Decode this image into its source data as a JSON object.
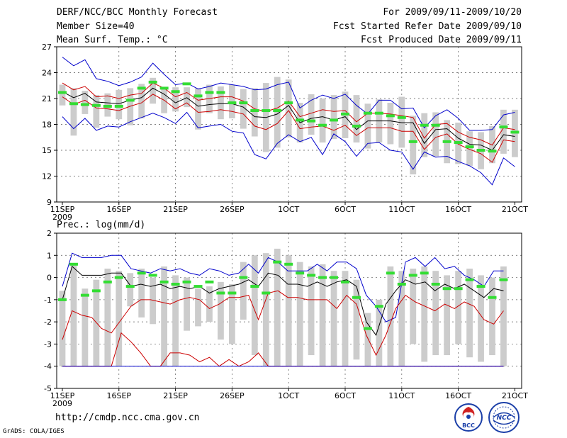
{
  "header": {
    "title": "DERF/NCC/BCC Monthly Forecast",
    "member_size": "Member Size=40",
    "variable": "Mean Surf. Temp.: °C",
    "period": "For 2009/09/11-2009/10/20",
    "started": "Fcst Started Refer Date 2009/09/10",
    "produced": "Fcst Produced Date 2009/09/11"
  },
  "footer": {
    "url": "http://cmdp.ncc.cma.gov.cn",
    "grads": "GrADS: COLA/IGES",
    "logo_left_text": "BCC",
    "logo_right_text": "NCC"
  },
  "colors": {
    "mean": "#000000",
    "inner": "#cc0000",
    "outer": "#0000cc",
    "obs": "#33dd33",
    "box": "#cccccc"
  },
  "chart_data": [
    {
      "type": "line",
      "title": "Mean Surf. Temp.: °C",
      "ylim": [
        9,
        27
      ],
      "yticks": [
        9,
        12,
        15,
        18,
        21,
        24,
        27
      ],
      "xticks": [
        {
          "day": 1,
          "label": "11SEP",
          "sub": "2009"
        },
        {
          "day": 6,
          "label": "16SEP"
        },
        {
          "day": 11,
          "label": "21SEP"
        },
        {
          "day": 16,
          "label": "26SEP"
        },
        {
          "day": 21,
          "label": "1OCT"
        },
        {
          "day": 26,
          "label": "6OCT"
        },
        {
          "day": 31,
          "label": "11OCT"
        },
        {
          "day": 36,
          "label": "16OCT"
        },
        {
          "day": 41,
          "label": "21OCT"
        }
      ],
      "series": [
        {
          "name": "ensemble max",
          "color": "outer",
          "values": [
            25.8,
            24.8,
            25.5,
            23.3,
            23.0,
            22.5,
            22.9,
            23.5,
            25.1,
            23.8,
            22.6,
            22.8,
            22.1,
            22.4,
            22.8,
            22.6,
            22.4,
            22.0,
            22.1,
            22.6,
            22.9,
            19.9,
            20.8,
            21.4,
            21.0,
            21.5,
            20.2,
            19.2,
            20.8,
            20.8,
            19.8,
            19.9,
            17.6,
            19.0,
            19.7,
            18.7,
            17.3,
            17.3,
            17.4,
            19.1,
            19.4
          ]
        },
        {
          "name": "ensemble upper",
          "color": "inner",
          "values": [
            22.8,
            22.0,
            22.4,
            21.2,
            21.3,
            21.0,
            21.4,
            21.6,
            22.8,
            22.2,
            21.2,
            21.7,
            20.8,
            21.0,
            21.2,
            21.2,
            20.7,
            19.8,
            19.5,
            19.9,
            20.7,
            18.9,
            19.3,
            19.7,
            19.5,
            19.6,
            18.3,
            19.3,
            19.3,
            19.2,
            19.0,
            18.8,
            16.4,
            18.0,
            18.1,
            17.1,
            16.5,
            16.2,
            15.6,
            17.6,
            17.4
          ]
        },
        {
          "name": "ensemble mean",
          "color": "mean",
          "values": [
            21.8,
            21.1,
            21.6,
            20.6,
            20.5,
            20.4,
            20.8,
            21.1,
            22.2,
            21.5,
            20.5,
            21.1,
            20.1,
            20.3,
            20.4,
            20.4,
            20.0,
            18.9,
            18.8,
            19.2,
            20.2,
            18.2,
            18.7,
            18.9,
            18.5,
            18.9,
            17.4,
            18.4,
            18.4,
            18.4,
            18.2,
            18.2,
            15.8,
            17.4,
            17.5,
            16.4,
            15.7,
            15.6,
            15.0,
            16.8,
            16.6
          ]
        },
        {
          "name": "ensemble lower",
          "color": "inner",
          "values": [
            21.2,
            20.3,
            20.8,
            19.9,
            19.8,
            19.6,
            20.1,
            20.5,
            21.5,
            20.8,
            19.8,
            20.5,
            19.4,
            19.5,
            19.7,
            19.5,
            19.2,
            17.8,
            17.4,
            18.1,
            19.6,
            17.5,
            17.7,
            17.8,
            17.3,
            17.9,
            16.7,
            17.6,
            17.6,
            17.6,
            17.2,
            17.2,
            15.1,
            16.5,
            16.9,
            15.7,
            15.1,
            14.6,
            13.6,
            16.2,
            16.0
          ]
        },
        {
          "name": "ensemble min",
          "color": "outer",
          "values": [
            18.9,
            17.5,
            18.7,
            17.3,
            17.8,
            17.7,
            18.3,
            18.8,
            19.3,
            18.8,
            18.1,
            19.4,
            17.6,
            17.8,
            18.0,
            17.2,
            17.0,
            14.5,
            14.0,
            15.8,
            16.8,
            16.0,
            16.5,
            14.5,
            16.9,
            16.0,
            14.3,
            15.8,
            15.9,
            15.0,
            14.8,
            12.8,
            14.8,
            14.2,
            14.3,
            13.7,
            13.2,
            12.4,
            11.0,
            14.1,
            13.1
          ]
        }
      ],
      "observed": [
        21.7,
        20.4,
        20.3,
        20.2,
        20.1,
        20.1,
        20.8,
        22.2,
        22.9,
        22.2,
        21.8,
        22.7,
        21.3,
        21.7,
        21.7,
        20.5,
        20.5,
        19.6,
        19.6,
        19.6,
        20.5,
        18.5,
        18.4,
        17.9,
        18.5,
        19.2,
        17.8,
        19.3,
        19.3,
        19.0,
        18.8,
        16.0,
        17.9,
        17.9,
        16.0,
        15.9,
        15.4,
        15.0,
        14.9,
        17.7,
        17.1
      ],
      "boxes": [
        [
          20.2,
          22.6
        ],
        [
          16.7,
          22.2
        ],
        [
          19.2,
          21.9
        ],
        [
          17.6,
          21.4
        ],
        [
          18.9,
          21.6
        ],
        [
          18.6,
          22.0
        ],
        [
          17.9,
          22.2
        ],
        [
          18.7,
          22.7
        ],
        [
          20.4,
          23.4
        ],
        [
          19.3,
          22.1
        ],
        [
          19.5,
          22.3
        ],
        [
          20.0,
          22.3
        ],
        [
          17.4,
          22.2
        ],
        [
          19.3,
          22.6
        ],
        [
          18.6,
          22.4
        ],
        [
          18.7,
          22.6
        ],
        [
          17.5,
          22.1
        ],
        [
          16.6,
          22.2
        ],
        [
          14.8,
          22.8
        ],
        [
          15.3,
          23.5
        ],
        [
          16.5,
          23.2
        ],
        [
          15.9,
          20.5
        ],
        [
          16.8,
          21.5
        ],
        [
          15.9,
          21.0
        ],
        [
          16.3,
          21.4
        ],
        [
          16.4,
          21.8
        ],
        [
          15.9,
          21.4
        ],
        [
          15.2,
          20.4
        ],
        [
          15.9,
          20.9
        ],
        [
          15.7,
          20.5
        ],
        [
          15.3,
          21.2
        ],
        [
          12.2,
          19.0
        ],
        [
          14.2,
          19.3
        ],
        [
          14.3,
          19.4
        ],
        [
          13.5,
          18.5
        ],
        [
          13.4,
          18.2
        ],
        [
          13.2,
          17.2
        ],
        [
          12.8,
          17.1
        ],
        [
          13.5,
          17.8
        ],
        [
          14.6,
          19.7
        ],
        [
          14.2,
          19.7
        ]
      ]
    },
    {
      "type": "line",
      "title": "Prec.: log(mm/d)",
      "ylim": [
        -5,
        2
      ],
      "yticks": [
        -5,
        -4,
        -3,
        -2,
        -1,
        0,
        1,
        2
      ],
      "xticks": [
        {
          "day": 1,
          "label": "11SEP",
          "sub": "2009"
        },
        {
          "day": 6,
          "label": "16SEP"
        },
        {
          "day": 11,
          "label": "21SEP"
        },
        {
          "day": 16,
          "label": "26SEP"
        },
        {
          "day": 21,
          "label": "1OCT"
        },
        {
          "day": 26,
          "label": "6OCT"
        },
        {
          "day": 31,
          "label": "11OCT"
        },
        {
          "day": 36,
          "label": "16OCT"
        },
        {
          "day": 41,
          "label": "21OCT"
        }
      ],
      "series": [
        {
          "name": "ensemble max",
          "color": "outer",
          "values": [
            -0.4,
            1.1,
            0.9,
            0.9,
            0.9,
            1.0,
            1.0,
            0.4,
            0.3,
            0.2,
            0.4,
            0.3,
            0.4,
            0.2,
            0.1,
            0.4,
            0.3,
            0.1,
            0.2,
            0.6,
            0.2,
            0.9,
            0.7,
            0.3,
            0.3,
            0.3,
            0.6,
            0.3,
            0.7,
            0.7,
            0.4,
            -0.8,
            -1.3,
            -2.0,
            -1.8,
            0.7,
            0.9,
            0.5,
            0.9,
            0.4,
            0.5,
            0.1,
            -0.1,
            -0.4,
            0.3,
            0.3
          ]
        },
        {
          "name": "ensemble mean",
          "color": "mean",
          "values": [
            -1.0,
            0.5,
            0.1,
            0.1,
            0.1,
            0.2,
            0.2,
            -0.4,
            -0.3,
            -0.4,
            -0.3,
            -0.5,
            -0.4,
            -0.5,
            -0.4,
            -0.7,
            -0.5,
            -0.4,
            -0.3,
            -0.1,
            -0.4,
            0.2,
            0.1,
            -0.3,
            -0.3,
            -0.4,
            -0.2,
            -0.4,
            -0.2,
            -0.1,
            -0.4,
            -2.0,
            -2.6,
            -1.2,
            -0.6,
            -0.1,
            -0.3,
            -0.2,
            -0.6,
            -0.3,
            -0.5,
            -0.3,
            -0.6,
            -0.9,
            -0.5,
            -0.6
          ]
        },
        {
          "name": "ensemble upper",
          "color": "inner",
          "values": [
            -2.8,
            -1.5,
            -1.7,
            -1.8,
            -2.3,
            -2.5,
            -1.9,
            -1.3,
            -1.0,
            -1.0,
            -1.1,
            -1.2,
            -1.0,
            -0.9,
            -1.0,
            -1.4,
            -1.2,
            -0.9,
            -0.9,
            -0.8,
            -1.9,
            -0.7,
            -0.6,
            -0.9,
            -0.9,
            -1.0,
            -1.0,
            -1.0,
            -1.4,
            -0.8,
            -1.2,
            -2.6,
            -3.5,
            -2.6,
            -1.4,
            -0.8,
            -1.1,
            -1.3,
            -1.5,
            -1.2,
            -1.4,
            -1.1,
            -1.3,
            -1.9,
            -2.1,
            -1.5
          ]
        },
        {
          "name": "ensemble lower",
          "color": "inner",
          "values": [
            -4.0,
            -4.0,
            -4.0,
            -4.0,
            -4.0,
            -4.0,
            -2.5,
            -2.9,
            -3.4,
            -4.0,
            -4.0,
            -3.4,
            -3.4,
            -3.5,
            -3.8,
            -3.6,
            -4.0,
            -3.7,
            -4.0,
            -3.8,
            -3.4,
            -4.0,
            -4.0,
            -4.0,
            -4.0,
            -4.0,
            -4.0,
            -4.0,
            -4.0,
            -4.0,
            -4.0,
            -4.0,
            -4.0,
            -4.0,
            -4.0,
            -4.0,
            -4.0,
            -4.0,
            -4.0,
            -4.0,
            -4.0,
            -4.0,
            -4.0,
            -4.0,
            -4.0,
            -4.0
          ]
        },
        {
          "name": "ensemble min",
          "color": "outer",
          "values": [
            -4.0,
            -4.0,
            -4.0,
            -4.0,
            -4.0,
            -4.0,
            -4.0,
            -4.0,
            -4.0,
            -4.0,
            -4.0,
            -4.0,
            -4.0,
            -4.0,
            -4.0,
            -4.0,
            -4.0,
            -4.0,
            -4.0,
            -4.0,
            -4.0,
            -4.0,
            -4.0,
            -4.0,
            -4.0,
            -4.0,
            -4.0,
            -4.0,
            -4.0,
            -4.0,
            -4.0,
            -4.0,
            -4.0,
            -4.0,
            -4.0,
            -4.0,
            -4.0,
            -4.0,
            -4.0,
            -4.0,
            -4.0,
            -4.0,
            -4.0,
            -4.0,
            -4.0,
            -4.0
          ]
        }
      ],
      "observed": [
        -1.0,
        0.6,
        -0.8,
        -0.6,
        -0.2,
        0.0,
        -0.4,
        0.2,
        0.1,
        -0.2,
        -0.3,
        -0.2,
        -0.4,
        -0.2,
        -0.7,
        -0.7,
        0.0,
        -0.4,
        -0.7,
        0.7,
        0.6,
        0.2,
        0.1,
        0.0,
        0.0,
        -0.2,
        -0.9,
        -2.3,
        -1.3,
        0.2,
        -0.3,
        0.1,
        0.2,
        -0.3,
        -0.5,
        -0.5,
        -0.1,
        -0.4,
        -0.9,
        -0.1
      ],
      "boxes": [
        [
          -4.0,
          -0.6
        ],
        [
          -4.0,
          0.6
        ],
        [
          -4.0,
          -0.5
        ],
        [
          -4.0,
          -0.1
        ],
        [
          -4.0,
          0.4
        ],
        [
          -4.0,
          0.3
        ],
        [
          -1.3,
          0.2
        ],
        [
          -1.8,
          0.4
        ],
        [
          -2.1,
          0.0
        ],
        [
          -4.0,
          0.5
        ],
        [
          -4.0,
          0.1
        ],
        [
          -2.4,
          0.0
        ],
        [
          -2.2,
          -0.5
        ],
        [
          -2.0,
          -0.4
        ],
        [
          -2.8,
          -0.2
        ],
        [
          -3.0,
          -0.3
        ],
        [
          -1.9,
          0.7
        ],
        [
          -3.5,
          1.0
        ],
        [
          -4.0,
          1.1
        ],
        [
          -4.0,
          1.3
        ],
        [
          -4.0,
          1.0
        ],
        [
          -4.0,
          0.7
        ],
        [
          -3.5,
          0.5
        ],
        [
          -4.0,
          0.6
        ],
        [
          -4.0,
          0.3
        ],
        [
          -4.0,
          0.3
        ],
        [
          -3.7,
          -0.1
        ],
        [
          -4.0,
          -1.6
        ],
        [
          -4.0,
          -1.0
        ],
        [
          -4.0,
          0.5
        ],
        [
          -4.0,
          0.3
        ],
        [
          -3.0,
          0.4
        ],
        [
          -3.8,
          0.5
        ],
        [
          -3.5,
          0.3
        ],
        [
          -3.5,
          0.1
        ],
        [
          -3.0,
          0.3
        ],
        [
          -3.6,
          0.4
        ],
        [
          -3.8,
          0.1
        ],
        [
          -3.5,
          0.0
        ],
        [
          -4.0,
          0.5
        ]
      ]
    }
  ]
}
